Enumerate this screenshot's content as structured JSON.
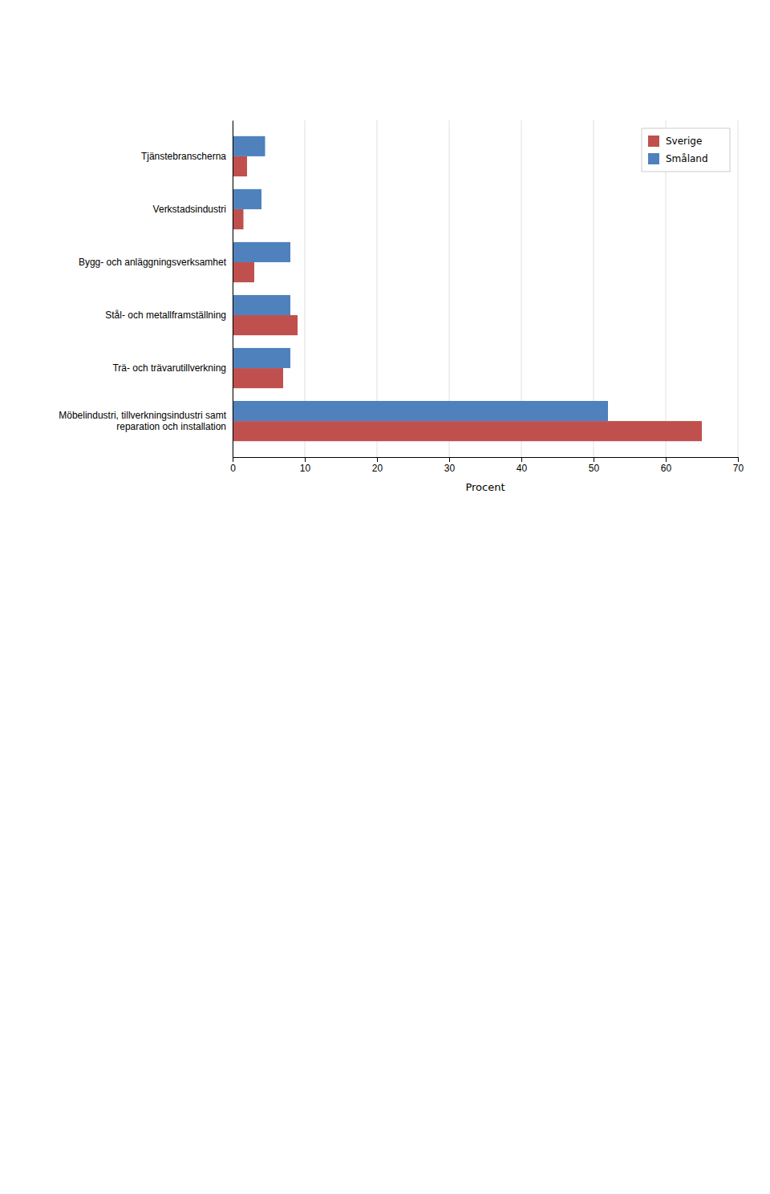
{
  "chart_data": {
    "type": "bar",
    "orientation": "horizontal",
    "categories": [
      "Tjänstebranscherna",
      "Verkstadsindustri",
      "Bygg- och anläggningsverksamhet",
      "Stål- och metallframställning",
      "Trä- och trävarutillverkning",
      "Möbelindustri, tillverkningsindustri samt\nreparation och installation"
    ],
    "series": [
      {
        "name": "Sverige",
        "color": "#c0504d",
        "values": [
          2,
          1.5,
          3,
          9,
          7,
          65
        ]
      },
      {
        "name": "Småland",
        "color": "#4f81bd",
        "values": [
          4.5,
          4,
          8,
          8,
          8,
          52
        ]
      }
    ],
    "xlabel": "Procent",
    "xlim": [
      0,
      70
    ],
    "xticks": [
      0,
      10,
      20,
      30,
      40,
      50,
      60,
      70
    ],
    "grid": true,
    "legend": "upper right"
  }
}
